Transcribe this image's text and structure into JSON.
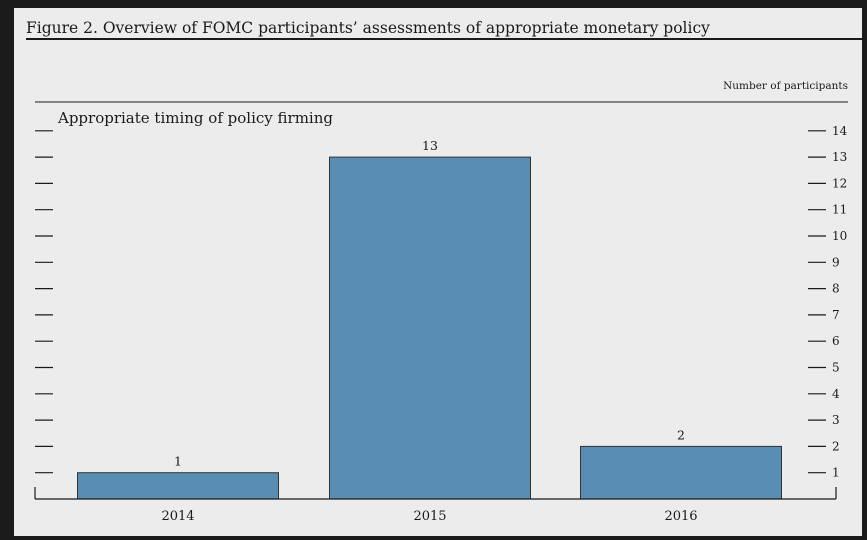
{
  "figure_title": "Figure 2. Overview of FOMC participants’ assessments of appropriate monetary policy",
  "colors": {
    "bar": "#5a8db2",
    "bar_edge": "#333333",
    "ink": "#1a1a1a",
    "background": "#ececec"
  },
  "chart_data": {
    "type": "bar",
    "title": "Appropriate timing of policy firming",
    "ylabel": "Number of participants",
    "xlabel": "",
    "categories": [
      "2014",
      "2015",
      "2016"
    ],
    "values": [
      1,
      13,
      2
    ],
    "data_labels": [
      "1",
      "13",
      "2"
    ],
    "ylim": [
      0,
      14
    ],
    "yticks": [
      1,
      2,
      3,
      4,
      5,
      6,
      7,
      8,
      9,
      10,
      11,
      12,
      13,
      14
    ],
    "ytick_position": "right",
    "grid": false,
    "legend": "none"
  }
}
